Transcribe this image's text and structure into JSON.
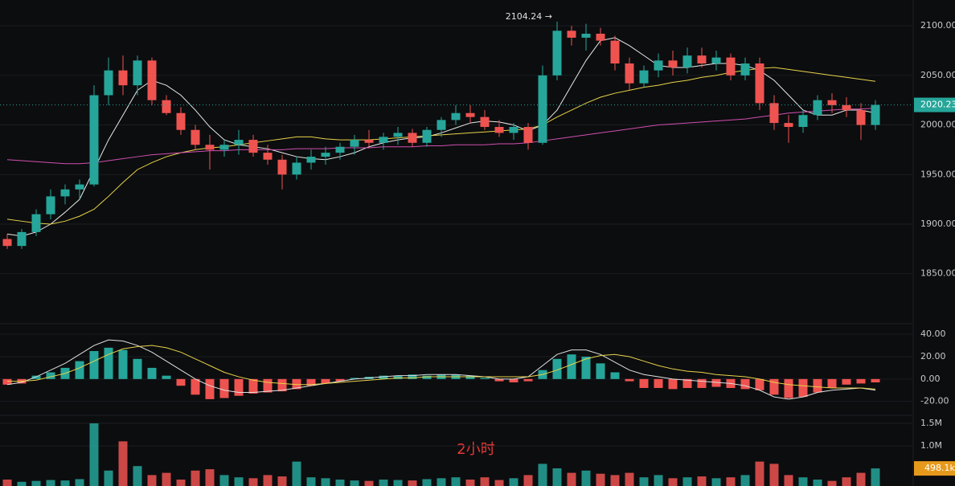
{
  "chart_data": {
    "type": "candlestick",
    "title": "2小时",
    "high_annotation": "2104.24 →",
    "candles": {
      "open": [
        1885,
        1878,
        1892,
        1910,
        1928,
        1935,
        1940,
        2030,
        2055,
        2040,
        2065,
        2025,
        2012,
        1995,
        1980,
        1975,
        1980,
        1985,
        1972,
        1965,
        1950,
        1962,
        1968,
        1972,
        1978,
        1985,
        1982,
        1988,
        1992,
        1982,
        1995,
        2005,
        2012,
        2008,
        1998,
        1992,
        1998,
        1982,
        2050,
        2095,
        2088,
        2092,
        2085,
        2062,
        2042,
        2055,
        2065,
        2058,
        2070,
        2062,
        2068,
        2050,
        2062,
        2022,
        2002,
        1998,
        2010,
        2025,
        2020,
        2015,
        2000
      ],
      "high": [
        1890,
        1895,
        1915,
        1935,
        1940,
        1945,
        2040,
        2068,
        2070,
        2070,
        2068,
        2030,
        2018,
        2000,
        1990,
        1985,
        1995,
        1990,
        1980,
        1970,
        1968,
        1975,
        1978,
        1982,
        1990,
        1995,
        1992,
        1998,
        1996,
        1998,
        2008,
        2020,
        2020,
        2015,
        2005,
        2002,
        2002,
        2060,
        2104.24,
        2100,
        2102,
        2098,
        2090,
        2068,
        2060,
        2072,
        2075,
        2078,
        2078,
        2075,
        2072,
        2068,
        2068,
        2030,
        2010,
        2015,
        2030,
        2032,
        2028,
        2022,
        2025
      ],
      "low": [
        1875,
        1875,
        1888,
        1905,
        1920,
        1925,
        1938,
        2020,
        2030,
        2030,
        2020,
        2010,
        1990,
        1975,
        1955,
        1968,
        1970,
        1968,
        1960,
        1935,
        1945,
        1955,
        1960,
        1965,
        1970,
        1978,
        1975,
        1980,
        1978,
        1978,
        1988,
        2000,
        2002,
        1995,
        1988,
        1985,
        1975,
        1980,
        2045,
        2080,
        2075,
        2080,
        2055,
        2035,
        2038,
        2048,
        2050,
        2052,
        2058,
        2055,
        2045,
        2045,
        2015,
        1995,
        1982,
        1992,
        2005,
        2012,
        2008,
        1985,
        1995
      ],
      "close": [
        1878,
        1892,
        1910,
        1928,
        1935,
        1940,
        2030,
        2055,
        2040,
        2065,
        2025,
        2012,
        1995,
        1980,
        1975,
        1980,
        1985,
        1972,
        1965,
        1950,
        1962,
        1968,
        1972,
        1978,
        1985,
        1982,
        1988,
        1992,
        1982,
        1995,
        2005,
        2012,
        2008,
        1998,
        1992,
        1998,
        1982,
        2050,
        2095,
        2088,
        2092,
        2085,
        2062,
        2042,
        2055,
        2065,
        2058,
        2070,
        2062,
        2068,
        2050,
        2062,
        2022,
        2002,
        1998,
        2010,
        2025,
        2020,
        2015,
        2000,
        2020.23
      ]
    },
    "up_color": "#26a69a",
    "down_color": "#ef5350",
    "moving_averages": [
      {
        "color": "#e8e8e8",
        "values": [
          1890,
          1888,
          1892,
          1900,
          1912,
          1925,
          1955,
          1985,
          2010,
          2035,
          2045,
          2040,
          2030,
          2015,
          1998,
          1985,
          1980,
          1978,
          1976,
          1972,
          1968,
          1966,
          1965,
          1968,
          1972,
          1978,
          1982,
          1985,
          1987,
          1988,
          1992,
          1997,
          2002,
          2004,
          2003,
          2000,
          1994,
          2000,
          2015,
          2040,
          2065,
          2085,
          2088,
          2080,
          2070,
          2060,
          2058,
          2058,
          2060,
          2062,
          2062,
          2060,
          2055,
          2045,
          2030,
          2015,
          2010,
          2010,
          2015,
          2015,
          2012
        ]
      },
      {
        "color": "#e8d34a",
        "values": [
          1905,
          1903,
          1901,
          1900,
          1903,
          1908,
          1915,
          1928,
          1942,
          1955,
          1962,
          1968,
          1972,
          1975,
          1977,
          1978,
          1980,
          1982,
          1984,
          1986,
          1988,
          1988,
          1986,
          1985,
          1985,
          1985,
          1986,
          1987,
          1988,
          1989,
          1990,
          1991,
          1992,
          1993,
          1994,
          1995,
          1996,
          2000,
          2008,
          2015,
          2022,
          2028,
          2032,
          2035,
          2038,
          2040,
          2043,
          2045,
          2048,
          2050,
          2053,
          2055,
          2057,
          2058,
          2056,
          2054,
          2052,
          2050,
          2048,
          2046,
          2044
        ]
      },
      {
        "color": "#d04fb0",
        "values": [
          1965,
          1964,
          1963,
          1962,
          1961,
          1961,
          1962,
          1964,
          1966,
          1968,
          1970,
          1971,
          1972,
          1973,
          1974,
          1974,
          1975,
          1975,
          1975,
          1975,
          1976,
          1976,
          1976,
          1977,
          1977,
          1977,
          1978,
          1978,
          1978,
          1979,
          1979,
          1980,
          1980,
          1980,
          1981,
          1981,
          1982,
          1984,
          1986,
          1988,
          1990,
          1992,
          1994,
          1996,
          1998,
          2000,
          2001,
          2002,
          2003,
          2004,
          2005,
          2006,
          2008,
          2010,
          2012,
          2013,
          2014,
          2015,
          2016,
          2016,
          2017
        ]
      }
    ],
    "ylim": [
      1802,
      2126
    ],
    "yticks": [
      {
        "value": 2100,
        "label": "2100.00"
      },
      {
        "value": 2050,
        "label": "2050.00"
      },
      {
        "value": 2000,
        "label": "2000.00"
      },
      {
        "value": 1950,
        "label": "1950.00"
      },
      {
        "value": 1900,
        "label": "1900.00"
      },
      {
        "value": 1850,
        "label": "1850.00"
      }
    ],
    "current_price": 2020.23,
    "macd": {
      "histogram": [
        -5,
        -4,
        3,
        6,
        10,
        16,
        25,
        28,
        26,
        18,
        10,
        3,
        -6,
        -14,
        -18,
        -17,
        -15,
        -13,
        -12,
        -11,
        -9,
        -6,
        -4,
        -2,
        1,
        2,
        3,
        3,
        4,
        3,
        4,
        4,
        3,
        1,
        -2,
        -3,
        -2,
        8,
        18,
        22,
        20,
        14,
        6,
        -2,
        -8,
        -8,
        -9,
        -8,
        -8,
        -7,
        -8,
        -9,
        -10,
        -14,
        -17,
        -16,
        -12,
        -8,
        -5,
        -4,
        -3
      ],
      "lines": [
        {
          "color": "#e0e0e0",
          "values": [
            -5,
            -3,
            2,
            8,
            14,
            22,
            30,
            35,
            34,
            30,
            24,
            16,
            8,
            0,
            -6,
            -10,
            -12,
            -12,
            -11,
            -10,
            -8,
            -6,
            -4,
            -2,
            0,
            1,
            2,
            3,
            3,
            4,
            4,
            4,
            3,
            2,
            0,
            0,
            2,
            12,
            22,
            26,
            26,
            22,
            15,
            8,
            4,
            2,
            0,
            -1,
            -2,
            -3,
            -4,
            -6,
            -10,
            -16,
            -18,
            -16,
            -12,
            -10,
            -9,
            -8,
            -10
          ]
        },
        {
          "color": "#e8d34a",
          "values": [
            -2,
            -2,
            -1,
            2,
            5,
            10,
            16,
            22,
            27,
            29,
            30,
            28,
            24,
            18,
            12,
            6,
            2,
            -1,
            -3,
            -4,
            -5,
            -5,
            -4,
            -3,
            -2,
            -1,
            0,
            1,
            1,
            2,
            2,
            2,
            2,
            2,
            2,
            2,
            2,
            4,
            8,
            13,
            18,
            21,
            22,
            20,
            16,
            12,
            9,
            7,
            6,
            4,
            3,
            2,
            0,
            -3,
            -5,
            -6,
            -7,
            -8,
            -8,
            -8,
            -9
          ]
        }
      ],
      "ylim": [
        -31,
        48
      ],
      "yticks": [
        {
          "value": 40,
          "label": "40.00"
        },
        {
          "value": 20,
          "label": "20.00"
        },
        {
          "value": 0,
          "label": "0.00"
        },
        {
          "value": -20,
          "label": "-20.00"
        }
      ]
    },
    "volume": {
      "values": [
        250000,
        200000,
        220000,
        240000,
        230000,
        260000,
        1500000,
        450000,
        1100000,
        550000,
        350000,
        400000,
        250000,
        450000,
        480000,
        350000,
        300000,
        280000,
        350000,
        320000,
        650000,
        300000,
        280000,
        250000,
        230000,
        220000,
        250000,
        240000,
        230000,
        260000,
        280000,
        300000,
        250000,
        300000,
        240000,
        280000,
        350000,
        600000,
        500000,
        400000,
        450000,
        380000,
        350000,
        400000,
        300000,
        350000,
        280000,
        300000,
        320000,
        280000,
        300000,
        350000,
        650000,
        600000,
        350000,
        300000,
        250000,
        220000,
        300000,
        400000,
        498100
      ],
      "ylim": [
        107000,
        1625000
      ],
      "yticks": [
        {
          "value": 1500000,
          "label": "1.5M"
        },
        {
          "value": 1000000,
          "label": "1.0M"
        }
      ],
      "current": {
        "value": 498100,
        "label": "498.1k"
      }
    }
  }
}
